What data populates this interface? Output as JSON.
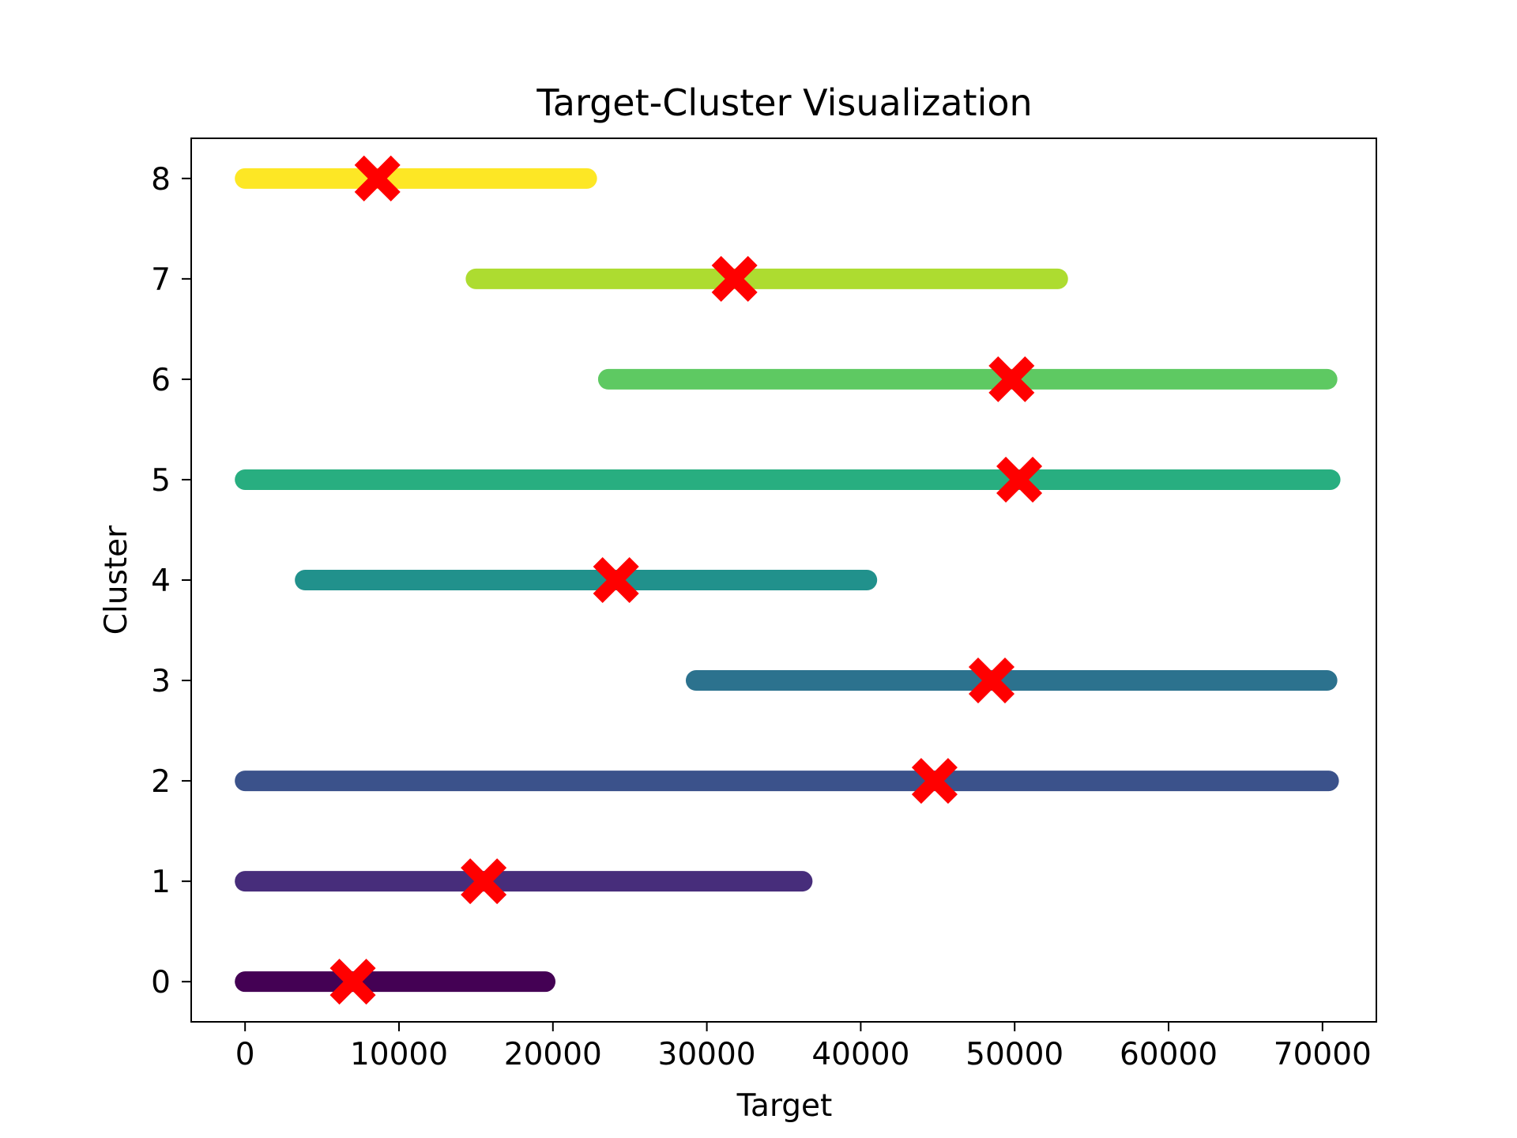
{
  "chart_data": {
    "type": "scatter",
    "title": "Target-Cluster Visualization",
    "xlabel": "Target",
    "ylabel": "Cluster",
    "xlim": [
      -3500,
      73500
    ],
    "ylim": [
      -0.4,
      8.4
    ],
    "xticks": [
      0,
      10000,
      20000,
      30000,
      40000,
      50000,
      60000,
      70000
    ],
    "yticks": [
      0,
      1,
      2,
      3,
      4,
      5,
      6,
      7,
      8
    ],
    "grid": false,
    "legend": "none",
    "clusters": [
      {
        "cluster": 0,
        "x_min": 0,
        "x_max": 19500,
        "color": "#440154"
      },
      {
        "cluster": 1,
        "x_min": 0,
        "x_max": 36200,
        "color": "#472d7b"
      },
      {
        "cluster": 2,
        "x_min": 0,
        "x_max": 70400,
        "color": "#3b528b"
      },
      {
        "cluster": 3,
        "x_min": 29300,
        "x_max": 70300,
        "color": "#2c728e"
      },
      {
        "cluster": 4,
        "x_min": 3900,
        "x_max": 40400,
        "color": "#21918c"
      },
      {
        "cluster": 5,
        "x_min": 0,
        "x_max": 70500,
        "color": "#28ae80"
      },
      {
        "cluster": 6,
        "x_min": 23600,
        "x_max": 70300,
        "color": "#5ec962"
      },
      {
        "cluster": 7,
        "x_min": 15000,
        "x_max": 52800,
        "color": "#addc30"
      },
      {
        "cluster": 8,
        "x_min": 0,
        "x_max": 22200,
        "color": "#fde725"
      }
    ],
    "centroids": [
      {
        "cluster": 0,
        "x": 7000,
        "color": "#ff0000"
      },
      {
        "cluster": 1,
        "x": 15500,
        "color": "#ff0000"
      },
      {
        "cluster": 2,
        "x": 44800,
        "color": "#ff0000"
      },
      {
        "cluster": 3,
        "x": 48500,
        "color": "#ff0000"
      },
      {
        "cluster": 4,
        "x": 24100,
        "color": "#ff0000"
      },
      {
        "cluster": 5,
        "x": 50300,
        "color": "#ff0000"
      },
      {
        "cluster": 6,
        "x": 49800,
        "color": "#ff0000"
      },
      {
        "cluster": 7,
        "x": 31800,
        "color": "#ff0000"
      },
      {
        "cluster": 8,
        "x": 8600,
        "color": "#ff0000"
      }
    ]
  }
}
